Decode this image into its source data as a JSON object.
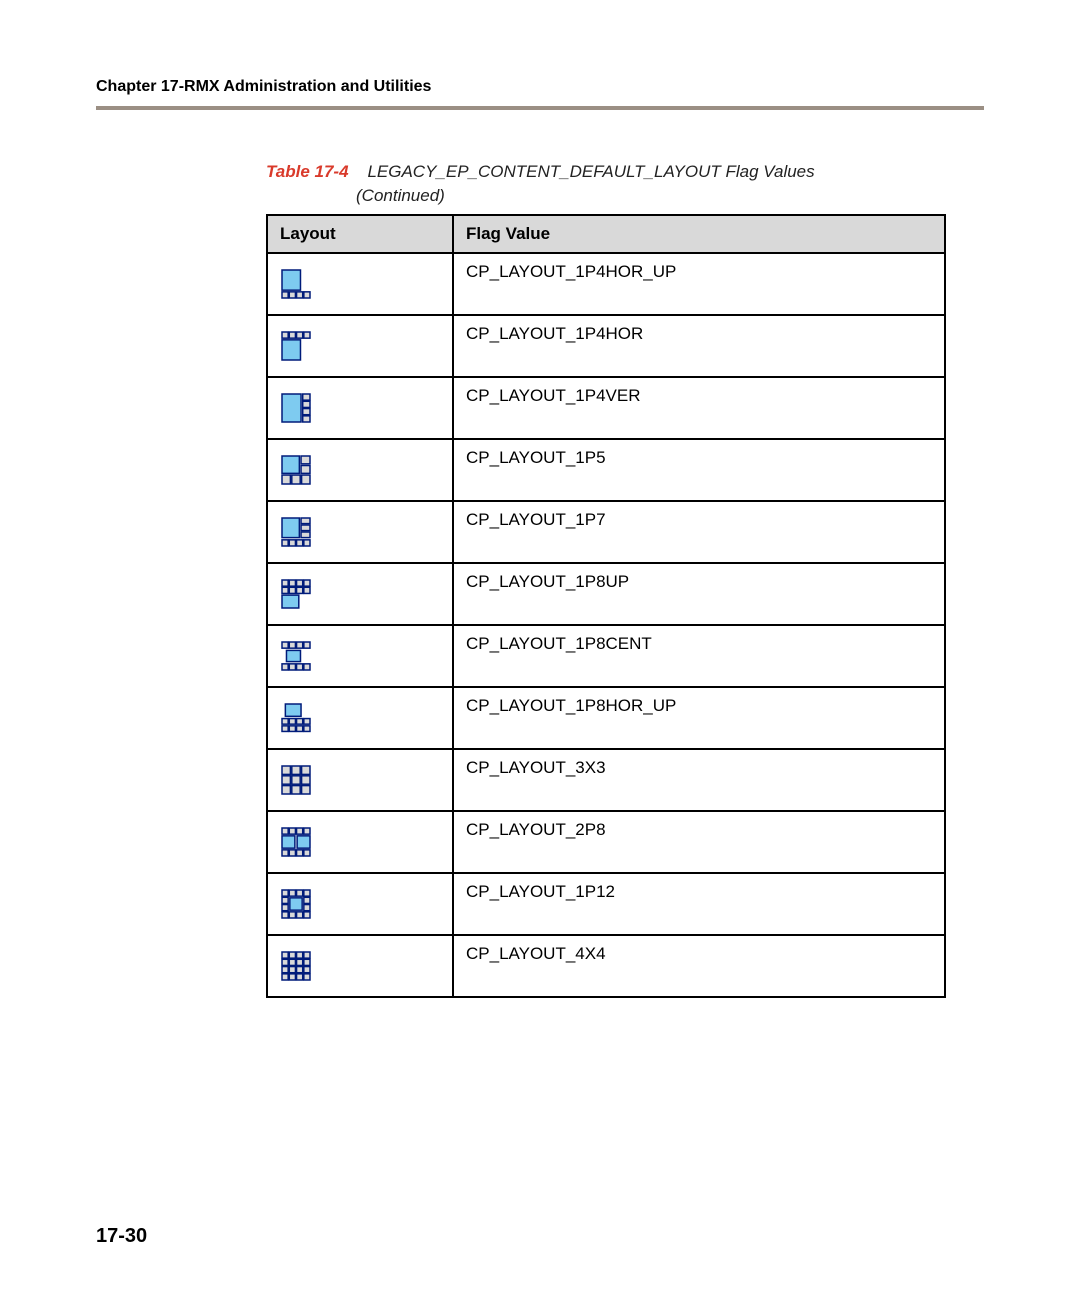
{
  "chapter_header": "Chapter 17-RMX Administration and Utilities",
  "table_caption": {
    "number": "Table 17-4",
    "title": "LEGACY_EP_CONTENT_DEFAULT_LAYOUT Flag Values",
    "continued": "(Continued)"
  },
  "columns": [
    "Layout",
    "Flag Value"
  ],
  "page_number": "17-30",
  "icon_style": {
    "scale": 28,
    "outline": "#001b7a",
    "outline_w": 1.5,
    "big_fill": "#7ecbf0",
    "big_stroke": "#001b7a",
    "small_fill": "#d9d9d9",
    "small_stroke": "#001b7a"
  },
  "rows": [
    {
      "flag": "CP_LAYOUT_1P4HOR_UP",
      "shapes": [
        {
          "x": 0,
          "y": 0,
          "w": 0.66,
          "h": 0.72,
          "big": true
        },
        {
          "x": 0.0,
          "y": 0.78,
          "w": 0.22,
          "h": 0.22,
          "big": false
        },
        {
          "x": 0.26,
          "y": 0.78,
          "w": 0.22,
          "h": 0.22,
          "big": false
        },
        {
          "x": 0.52,
          "y": 0.78,
          "w": 0.22,
          "h": 0.22,
          "big": false
        },
        {
          "x": 0.78,
          "y": 0.78,
          "w": 0.22,
          "h": 0.22,
          "big": false
        }
      ]
    },
    {
      "flag": "CP_LAYOUT_1P4HOR",
      "shapes": [
        {
          "x": 0.0,
          "y": 0.0,
          "w": 0.22,
          "h": 0.22,
          "big": false
        },
        {
          "x": 0.26,
          "y": 0.0,
          "w": 0.22,
          "h": 0.22,
          "big": false
        },
        {
          "x": 0.52,
          "y": 0.0,
          "w": 0.22,
          "h": 0.22,
          "big": false
        },
        {
          "x": 0.78,
          "y": 0.0,
          "w": 0.22,
          "h": 0.22,
          "big": false
        },
        {
          "x": 0,
          "y": 0.28,
          "w": 0.66,
          "h": 0.72,
          "big": true
        }
      ]
    },
    {
      "flag": "CP_LAYOUT_1P4VER",
      "shapes": [
        {
          "x": 0,
          "y": 0,
          "w": 0.68,
          "h": 1.0,
          "big": true
        },
        {
          "x": 0.74,
          "y": 0.0,
          "w": 0.26,
          "h": 0.22,
          "big": false
        },
        {
          "x": 0.74,
          "y": 0.26,
          "w": 0.26,
          "h": 0.22,
          "big": false
        },
        {
          "x": 0.74,
          "y": 0.52,
          "w": 0.26,
          "h": 0.22,
          "big": false
        },
        {
          "x": 0.74,
          "y": 0.78,
          "w": 0.26,
          "h": 0.22,
          "big": false
        }
      ]
    },
    {
      "flag": "CP_LAYOUT_1P5",
      "shapes": [
        {
          "x": 0,
          "y": 0,
          "w": 0.62,
          "h": 0.62,
          "big": true
        },
        {
          "x": 0.68,
          "y": 0.0,
          "w": 0.32,
          "h": 0.28,
          "big": false
        },
        {
          "x": 0.68,
          "y": 0.34,
          "w": 0.32,
          "h": 0.28,
          "big": false
        },
        {
          "x": 0.0,
          "y": 0.68,
          "w": 0.3,
          "h": 0.32,
          "big": false
        },
        {
          "x": 0.35,
          "y": 0.68,
          "w": 0.3,
          "h": 0.32,
          "big": false
        },
        {
          "x": 0.7,
          "y": 0.68,
          "w": 0.3,
          "h": 0.32,
          "big": false
        }
      ]
    },
    {
      "flag": "CP_LAYOUT_1P7",
      "shapes": [
        {
          "x": 0,
          "y": 0,
          "w": 0.62,
          "h": 0.7,
          "big": true
        },
        {
          "x": 0.68,
          "y": 0.0,
          "w": 0.32,
          "h": 0.2,
          "big": false
        },
        {
          "x": 0.68,
          "y": 0.25,
          "w": 0.32,
          "h": 0.2,
          "big": false
        },
        {
          "x": 0.68,
          "y": 0.5,
          "w": 0.32,
          "h": 0.2,
          "big": false
        },
        {
          "x": 0.0,
          "y": 0.78,
          "w": 0.22,
          "h": 0.22,
          "big": false
        },
        {
          "x": 0.26,
          "y": 0.78,
          "w": 0.22,
          "h": 0.22,
          "big": false
        },
        {
          "x": 0.52,
          "y": 0.78,
          "w": 0.22,
          "h": 0.22,
          "big": false
        },
        {
          "x": 0.78,
          "y": 0.78,
          "w": 0.22,
          "h": 0.22,
          "big": false
        }
      ]
    },
    {
      "flag": "CP_LAYOUT_1P8UP",
      "shapes": [
        {
          "x": 0.0,
          "y": 0.0,
          "w": 0.22,
          "h": 0.22,
          "big": false
        },
        {
          "x": 0.26,
          "y": 0.0,
          "w": 0.22,
          "h": 0.22,
          "big": false
        },
        {
          "x": 0.52,
          "y": 0.0,
          "w": 0.22,
          "h": 0.22,
          "big": false
        },
        {
          "x": 0.78,
          "y": 0.0,
          "w": 0.22,
          "h": 0.22,
          "big": false
        },
        {
          "x": 0.0,
          "y": 0.26,
          "w": 0.22,
          "h": 0.22,
          "big": false
        },
        {
          "x": 0.26,
          "y": 0.26,
          "w": 0.22,
          "h": 0.22,
          "big": false
        },
        {
          "x": 0.52,
          "y": 0.26,
          "w": 0.22,
          "h": 0.22,
          "big": false
        },
        {
          "x": 0.78,
          "y": 0.26,
          "w": 0.22,
          "h": 0.22,
          "big": false
        },
        {
          "x": 0.0,
          "y": 0.54,
          "w": 0.6,
          "h": 0.46,
          "big": true
        }
      ]
    },
    {
      "flag": "CP_LAYOUT_1P8CENT",
      "shapes": [
        {
          "x": 0.0,
          "y": 0.0,
          "w": 0.22,
          "h": 0.22,
          "big": false
        },
        {
          "x": 0.26,
          "y": 0.0,
          "w": 0.22,
          "h": 0.22,
          "big": false
        },
        {
          "x": 0.52,
          "y": 0.0,
          "w": 0.22,
          "h": 0.22,
          "big": false
        },
        {
          "x": 0.78,
          "y": 0.0,
          "w": 0.22,
          "h": 0.22,
          "big": false
        },
        {
          "x": 0.16,
          "y": 0.3,
          "w": 0.5,
          "h": 0.4,
          "big": true
        },
        {
          "x": 0.0,
          "y": 0.78,
          "w": 0.22,
          "h": 0.22,
          "big": false
        },
        {
          "x": 0.26,
          "y": 0.78,
          "w": 0.22,
          "h": 0.22,
          "big": false
        },
        {
          "x": 0.52,
          "y": 0.78,
          "w": 0.22,
          "h": 0.22,
          "big": false
        },
        {
          "x": 0.78,
          "y": 0.78,
          "w": 0.22,
          "h": 0.22,
          "big": false
        }
      ]
    },
    {
      "flag": "CP_LAYOUT_1P8HOR_UP",
      "shapes": [
        {
          "x": 0.12,
          "y": 0.0,
          "w": 0.56,
          "h": 0.44,
          "big": true
        },
        {
          "x": 0.0,
          "y": 0.52,
          "w": 0.22,
          "h": 0.2,
          "big": false
        },
        {
          "x": 0.26,
          "y": 0.52,
          "w": 0.22,
          "h": 0.2,
          "big": false
        },
        {
          "x": 0.52,
          "y": 0.52,
          "w": 0.22,
          "h": 0.2,
          "big": false
        },
        {
          "x": 0.78,
          "y": 0.52,
          "w": 0.22,
          "h": 0.2,
          "big": false
        },
        {
          "x": 0.0,
          "y": 0.78,
          "w": 0.22,
          "h": 0.2,
          "big": false
        },
        {
          "x": 0.26,
          "y": 0.78,
          "w": 0.22,
          "h": 0.2,
          "big": false
        },
        {
          "x": 0.52,
          "y": 0.78,
          "w": 0.22,
          "h": 0.2,
          "big": false
        },
        {
          "x": 0.78,
          "y": 0.78,
          "w": 0.22,
          "h": 0.2,
          "big": false
        }
      ]
    },
    {
      "flag": "CP_LAYOUT_3X3",
      "shapes": [
        {
          "x": 0.0,
          "y": 0.0,
          "w": 0.3,
          "h": 0.3,
          "big": false
        },
        {
          "x": 0.35,
          "y": 0.0,
          "w": 0.3,
          "h": 0.3,
          "big": false
        },
        {
          "x": 0.7,
          "y": 0.0,
          "w": 0.3,
          "h": 0.3,
          "big": false
        },
        {
          "x": 0.0,
          "y": 0.35,
          "w": 0.3,
          "h": 0.3,
          "big": false
        },
        {
          "x": 0.35,
          "y": 0.35,
          "w": 0.3,
          "h": 0.3,
          "big": false
        },
        {
          "x": 0.7,
          "y": 0.35,
          "w": 0.3,
          "h": 0.3,
          "big": false
        },
        {
          "x": 0.0,
          "y": 0.7,
          "w": 0.3,
          "h": 0.3,
          "big": false
        },
        {
          "x": 0.35,
          "y": 0.7,
          "w": 0.3,
          "h": 0.3,
          "big": false
        },
        {
          "x": 0.7,
          "y": 0.7,
          "w": 0.3,
          "h": 0.3,
          "big": false
        }
      ]
    },
    {
      "flag": "CP_LAYOUT_2P8",
      "shapes": [
        {
          "x": 0.0,
          "y": 0.0,
          "w": 0.22,
          "h": 0.22,
          "big": false
        },
        {
          "x": 0.26,
          "y": 0.0,
          "w": 0.22,
          "h": 0.22,
          "big": false
        },
        {
          "x": 0.52,
          "y": 0.0,
          "w": 0.22,
          "h": 0.22,
          "big": false
        },
        {
          "x": 0.78,
          "y": 0.0,
          "w": 0.22,
          "h": 0.22,
          "big": false
        },
        {
          "x": 0.0,
          "y": 0.28,
          "w": 0.46,
          "h": 0.44,
          "big": true
        },
        {
          "x": 0.54,
          "y": 0.28,
          "w": 0.46,
          "h": 0.44,
          "big": true
        },
        {
          "x": 0.0,
          "y": 0.78,
          "w": 0.22,
          "h": 0.22,
          "big": false
        },
        {
          "x": 0.26,
          "y": 0.78,
          "w": 0.22,
          "h": 0.22,
          "big": false
        },
        {
          "x": 0.52,
          "y": 0.78,
          "w": 0.22,
          "h": 0.22,
          "big": false
        },
        {
          "x": 0.78,
          "y": 0.78,
          "w": 0.22,
          "h": 0.22,
          "big": false
        }
      ]
    },
    {
      "flag": "CP_LAYOUT_1P12",
      "shapes": [
        {
          "x": 0.0,
          "y": 0.0,
          "w": 0.22,
          "h": 0.22,
          "big": false
        },
        {
          "x": 0.26,
          "y": 0.0,
          "w": 0.22,
          "h": 0.22,
          "big": false
        },
        {
          "x": 0.52,
          "y": 0.0,
          "w": 0.22,
          "h": 0.22,
          "big": false
        },
        {
          "x": 0.78,
          "y": 0.0,
          "w": 0.22,
          "h": 0.22,
          "big": false
        },
        {
          "x": 0.0,
          "y": 0.26,
          "w": 0.22,
          "h": 0.22,
          "big": false
        },
        {
          "x": 0.28,
          "y": 0.28,
          "w": 0.44,
          "h": 0.44,
          "big": true
        },
        {
          "x": 0.78,
          "y": 0.26,
          "w": 0.22,
          "h": 0.22,
          "big": false
        },
        {
          "x": 0.0,
          "y": 0.52,
          "w": 0.22,
          "h": 0.22,
          "big": false
        },
        {
          "x": 0.78,
          "y": 0.52,
          "w": 0.22,
          "h": 0.22,
          "big": false
        },
        {
          "x": 0.0,
          "y": 0.78,
          "w": 0.22,
          "h": 0.22,
          "big": false
        },
        {
          "x": 0.26,
          "y": 0.78,
          "w": 0.22,
          "h": 0.22,
          "big": false
        },
        {
          "x": 0.52,
          "y": 0.78,
          "w": 0.22,
          "h": 0.22,
          "big": false
        },
        {
          "x": 0.78,
          "y": 0.78,
          "w": 0.22,
          "h": 0.22,
          "big": false
        }
      ]
    },
    {
      "flag": "CP_LAYOUT_4X4",
      "shapes": [
        {
          "x": 0.0,
          "y": 0.0,
          "w": 0.22,
          "h": 0.22,
          "big": false
        },
        {
          "x": 0.26,
          "y": 0.0,
          "w": 0.22,
          "h": 0.22,
          "big": false
        },
        {
          "x": 0.52,
          "y": 0.0,
          "w": 0.22,
          "h": 0.22,
          "big": false
        },
        {
          "x": 0.78,
          "y": 0.0,
          "w": 0.22,
          "h": 0.22,
          "big": false
        },
        {
          "x": 0.0,
          "y": 0.26,
          "w": 0.22,
          "h": 0.22,
          "big": false
        },
        {
          "x": 0.26,
          "y": 0.26,
          "w": 0.22,
          "h": 0.22,
          "big": false
        },
        {
          "x": 0.52,
          "y": 0.26,
          "w": 0.22,
          "h": 0.22,
          "big": false
        },
        {
          "x": 0.78,
          "y": 0.26,
          "w": 0.22,
          "h": 0.22,
          "big": false
        },
        {
          "x": 0.0,
          "y": 0.52,
          "w": 0.22,
          "h": 0.22,
          "big": false
        },
        {
          "x": 0.26,
          "y": 0.52,
          "w": 0.22,
          "h": 0.22,
          "big": false
        },
        {
          "x": 0.52,
          "y": 0.52,
          "w": 0.22,
          "h": 0.22,
          "big": false
        },
        {
          "x": 0.78,
          "y": 0.52,
          "w": 0.22,
          "h": 0.22,
          "big": false
        },
        {
          "x": 0.0,
          "y": 0.78,
          "w": 0.22,
          "h": 0.22,
          "big": false
        },
        {
          "x": 0.26,
          "y": 0.78,
          "w": 0.22,
          "h": 0.22,
          "big": false
        },
        {
          "x": 0.52,
          "y": 0.78,
          "w": 0.22,
          "h": 0.22,
          "big": false
        },
        {
          "x": 0.78,
          "y": 0.78,
          "w": 0.22,
          "h": 0.22,
          "big": false
        }
      ]
    }
  ]
}
